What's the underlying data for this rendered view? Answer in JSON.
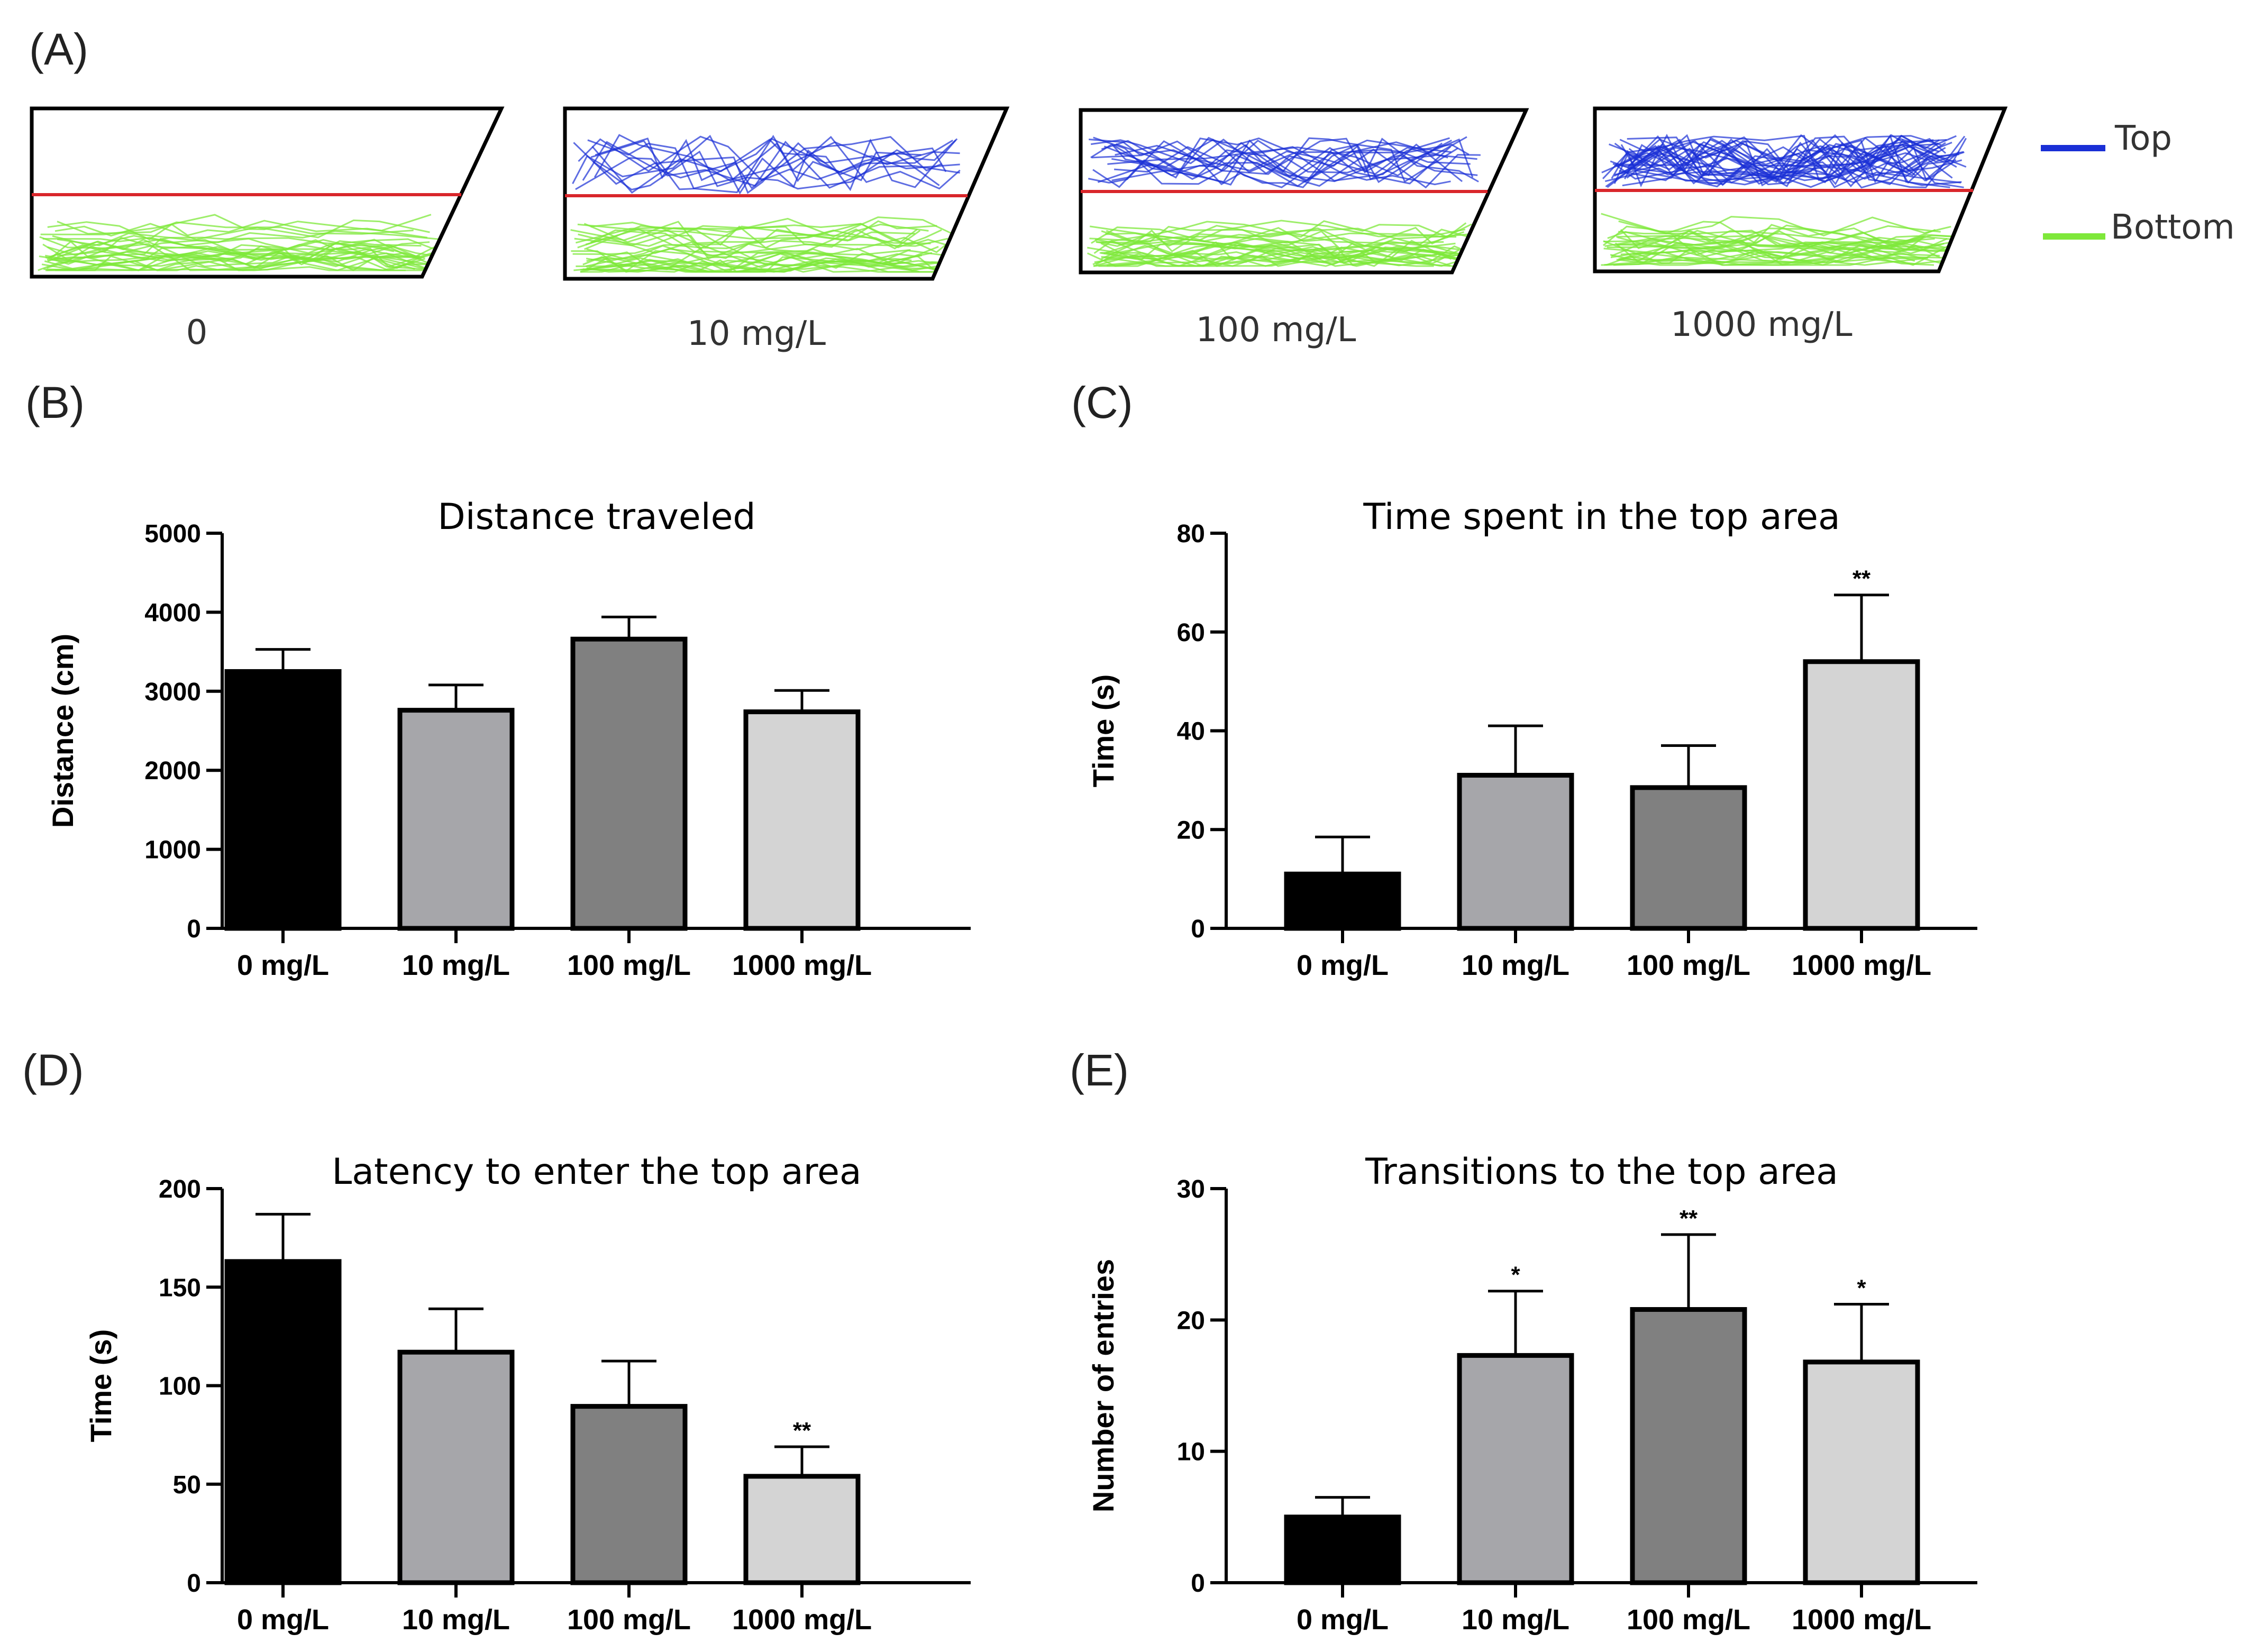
{
  "panelA": {
    "label": "(A)",
    "tanks": [
      {
        "label": "0",
        "top_level": 0.0
      },
      {
        "label": "10 mg/L",
        "top_level": 0.35
      },
      {
        "label": "100 mg/L",
        "top_level": 0.55
      },
      {
        "label": "1000 mg/L",
        "top_level": 1.0
      }
    ],
    "legend": {
      "top": "Top",
      "bottom": "Bottom",
      "top_color": "#1a2fd6",
      "bottom_color": "#7ee83a",
      "line_color": "#d9262b"
    }
  },
  "chart_data": [
    {
      "panel_label": "(B)",
      "type": "bar",
      "title": "Distance traveled",
      "ylabel": "Distance (cm)",
      "ylim": [
        0,
        5000
      ],
      "yticks": [
        0,
        1000,
        2000,
        3000,
        4000,
        5000
      ],
      "ytick_labels": [
        "0",
        "1000",
        "2000",
        "3000",
        "4000",
        "5000"
      ],
      "categories": [
        "0  mg/L",
        "10 mg/L",
        "100 mg/L",
        "1000 mg/L"
      ],
      "values": [
        3250,
        2760,
        3660,
        2740
      ],
      "errors": [
        280,
        320,
        280,
        270
      ],
      "significance": [
        "",
        "",
        "",
        ""
      ],
      "colors": [
        "#000000",
        "#a6a6aa",
        "#808080",
        "#d4d4d4"
      ]
    },
    {
      "panel_label": "(C)",
      "type": "bar",
      "title": "Time spent in the top area",
      "ylabel": "Time (s)",
      "ylim": [
        0,
        80
      ],
      "yticks": [
        0,
        20,
        40,
        60,
        80
      ],
      "ytick_labels": [
        "0",
        "20",
        "40",
        "60",
        "80"
      ],
      "categories": [
        "0  mg/L",
        "10 mg/L",
        "100 mg/L",
        "1000 mg/L"
      ],
      "values": [
        11,
        31,
        28.5,
        54
      ],
      "errors": [
        7.5,
        10,
        8.5,
        13.5
      ],
      "significance": [
        "",
        "",
        "",
        "**"
      ],
      "colors": [
        "#000000",
        "#a6a6aa",
        "#808080",
        "#d4d4d4"
      ]
    },
    {
      "panel_label": "(D)",
      "type": "bar",
      "title": "Latency to enter the top area",
      "ylabel": "Time (s)",
      "ylim": [
        0,
        200
      ],
      "yticks": [
        0,
        50,
        100,
        150,
        200
      ],
      "ytick_labels": [
        "0",
        "50",
        "100",
        "150",
        "200"
      ],
      "categories": [
        "0  mg/L",
        "10 mg/L",
        "100 mg/L",
        "1000 mg/L"
      ],
      "values": [
        163,
        117,
        89.5,
        54
      ],
      "errors": [
        24,
        22,
        23,
        15
      ],
      "significance": [
        "",
        "",
        "",
        "**"
      ],
      "colors": [
        "#000000",
        "#a6a6aa",
        "#808080",
        "#d4d4d4"
      ]
    },
    {
      "panel_label": "(E)",
      "type": "bar",
      "title": "Transitions to the top area",
      "ylabel": "Number of entries",
      "ylim": [
        0,
        30
      ],
      "yticks": [
        0,
        10,
        20,
        30
      ],
      "ytick_labels": [
        "0",
        "10",
        "20",
        "30"
      ],
      "categories": [
        "0  mg/L",
        "10 mg/L",
        "100 mg/L",
        "1000 mg/L"
      ],
      "values": [
        5,
        17.3,
        20.8,
        16.8
      ],
      "errors": [
        1.5,
        4.9,
        5.7,
        4.4
      ],
      "significance": [
        "",
        "*",
        "**",
        "*"
      ],
      "colors": [
        "#000000",
        "#a6a6aa",
        "#808080",
        "#d4d4d4"
      ]
    }
  ]
}
